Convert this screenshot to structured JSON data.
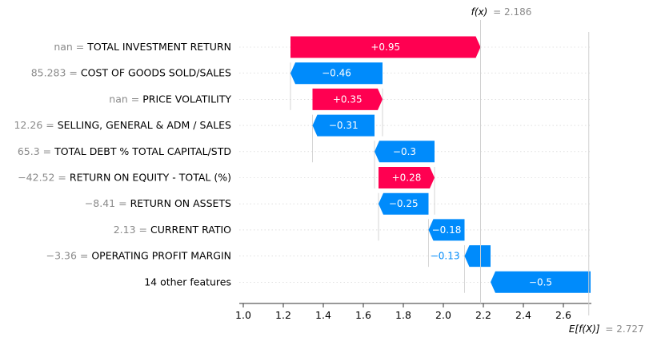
{
  "chart_data": {
    "type": "waterfall",
    "fx_label": "f(x)",
    "fx_value_text": "= 2.186",
    "fx_value": 2.186,
    "ex_label": "E[f(X)]",
    "ex_value_text": "= 2.727",
    "ex_value": 2.727,
    "xlim": [
      0.98,
      2.74
    ],
    "xticks": [
      1.0,
      1.2,
      1.4,
      1.6,
      1.8,
      2.0,
      2.2,
      2.4,
      2.6
    ],
    "xtick_labels": [
      "1.0",
      "1.2",
      "1.4",
      "1.6",
      "1.8",
      "2.0",
      "2.2",
      "2.4",
      "2.6"
    ],
    "positive_color": "#ff0051",
    "negative_color": "#008bfb",
    "rows": [
      {
        "value_text": "nan =",
        "feature": "TOTAL INVESTMENT RETURN",
        "start": 1.236,
        "end": 2.186,
        "contribution": 0.95,
        "label": "+0.95"
      },
      {
        "value_text": "85.283 =",
        "feature": "COST OF GOODS SOLD/SALES",
        "start": 1.696,
        "end": 1.236,
        "contribution": -0.46,
        "label": "−0.46"
      },
      {
        "value_text": "nan =",
        "feature": "PRICE VOLATILITY",
        "start": 1.346,
        "end": 1.696,
        "contribution": 0.35,
        "label": "+0.35"
      },
      {
        "value_text": "12.26 =",
        "feature": "SELLING, GENERAL & ADM / SALES",
        "start": 1.656,
        "end": 1.346,
        "contribution": -0.31,
        "label": "−0.31"
      },
      {
        "value_text": "65.3 =",
        "feature": "TOTAL DEBT % TOTAL CAPITAL/STD",
        "start": 1.956,
        "end": 1.656,
        "contribution": -0.3,
        "label": "−0.3"
      },
      {
        "value_text": "−42.52 =",
        "feature": "RETURN ON EQUITY - TOTAL (%)",
        "start": 1.676,
        "end": 1.956,
        "contribution": 0.28,
        "label": "+0.28"
      },
      {
        "value_text": "−8.41 =",
        "feature": "RETURN ON ASSETS",
        "start": 1.926,
        "end": 1.676,
        "contribution": -0.25,
        "label": "−0.25"
      },
      {
        "value_text": "2.13 =",
        "feature": "CURRENT RATIO",
        "start": 2.106,
        "end": 1.926,
        "contribution": -0.18,
        "label": "−0.18"
      },
      {
        "value_text": "−3.36 =",
        "feature": "OPERATING PROFIT MARGIN",
        "start": 2.236,
        "end": 2.106,
        "contribution": -0.13,
        "label": "−0.13"
      },
      {
        "value_text": "",
        "feature": "14 other features",
        "start": 2.736,
        "end": 2.236,
        "contribution": -0.5,
        "label": "−0.5"
      }
    ]
  }
}
